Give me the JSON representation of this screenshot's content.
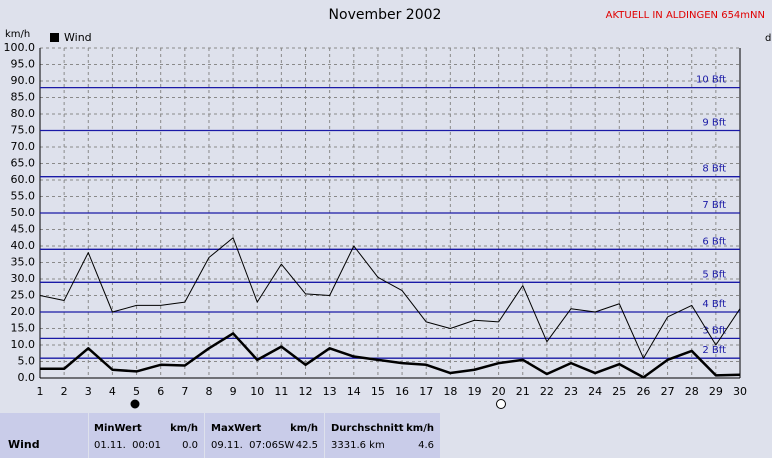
{
  "chart_data": {
    "type": "line",
    "title": "November 2002",
    "subtitle": "AKTUELL IN ALDINGEN 654mNN",
    "y_label": "km/h",
    "y2_label": "d",
    "x": [
      1,
      2,
      3,
      4,
      5,
      6,
      7,
      8,
      9,
      10,
      11,
      12,
      13,
      14,
      15,
      16,
      17,
      18,
      19,
      20,
      21,
      22,
      23,
      24,
      25,
      26,
      27,
      28,
      29,
      30
    ],
    "xlim": [
      1,
      30
    ],
    "xticks": [
      1,
      2,
      3,
      4,
      5,
      6,
      7,
      8,
      9,
      10,
      11,
      12,
      13,
      14,
      15,
      16,
      17,
      18,
      19,
      20,
      21,
      22,
      23,
      24,
      25,
      26,
      27,
      28,
      29,
      30
    ],
    "ylim": [
      0,
      100
    ],
    "yticks": [
      {
        "value": 0,
        "label": "0.0"
      },
      {
        "value": 5,
        "label": "5.0"
      },
      {
        "value": 10,
        "label": "10.0"
      },
      {
        "value": 15,
        "label": "15.0"
      },
      {
        "value": 20,
        "label": "20.0"
      },
      {
        "value": 25,
        "label": "25.0"
      },
      {
        "value": 30,
        "label": "30.0"
      },
      {
        "value": 35,
        "label": "35.0"
      },
      {
        "value": 40,
        "label": "40.0"
      },
      {
        "value": 45,
        "label": "45.0"
      },
      {
        "value": 50,
        "label": "50.0"
      },
      {
        "value": 55,
        "label": "55.0"
      },
      {
        "value": 60,
        "label": "60.0"
      },
      {
        "value": 65,
        "label": "65.0"
      },
      {
        "value": 70,
        "label": "70.0"
      },
      {
        "value": 75,
        "label": "75.0"
      },
      {
        "value": 80,
        "label": "80.0"
      },
      {
        "value": 85,
        "label": "85.0"
      },
      {
        "value": 90,
        "label": "90.0"
      },
      {
        "value": 95,
        "label": "95.0"
      },
      {
        "value": 100,
        "label": "100.0"
      }
    ],
    "grid": true,
    "reference_color": "#1a1aa6",
    "reference_lines": [
      {
        "value": 6,
        "label": "2 Bft"
      },
      {
        "value": 12,
        "label": "3 Bft"
      },
      {
        "value": 20,
        "label": "4 Bft"
      },
      {
        "value": 29,
        "label": "5 Bft"
      },
      {
        "value": 39,
        "label": "6 Bft"
      },
      {
        "value": 50,
        "label": "7 Bft"
      },
      {
        "value": 61,
        "label": "8 Bft"
      },
      {
        "value": 75,
        "label": "9 Bft"
      },
      {
        "value": 88,
        "label": "10 Bft"
      }
    ],
    "series": [
      {
        "color": "#000000",
        "width": 1,
        "values": [
          25,
          23.5,
          38,
          20,
          22,
          22,
          23,
          36.5,
          42.5,
          23,
          34.5,
          25.5,
          25,
          40,
          30.5,
          26.5,
          17,
          15,
          17.5,
          17,
          28,
          11,
          21,
          20,
          22.5,
          6,
          18.5,
          22,
          10,
          21
        ]
      },
      {
        "name": "Wind",
        "color": "#000000",
        "width": 2.5,
        "values": [
          2.8,
          2.8,
          9,
          2.5,
          2,
          4,
          3.8,
          9,
          13.5,
          5.5,
          9.5,
          4,
          9,
          6.5,
          5.5,
          4.5,
          4,
          1.5,
          2.5,
          4.5,
          5.5,
          1.2,
          4.5,
          1.5,
          4.2,
          0.2,
          5.5,
          8.2,
          0.8,
          1
        ]
      }
    ]
  },
  "stats": {
    "row_label": "Wind",
    "columns": [
      {
        "header": "MinWert",
        "unit": "km/h",
        "time": "01.11.  00:01",
        "value": "0.0"
      },
      {
        "header": "MaxWert",
        "unit": "km/h",
        "time": "09.11.  07:06SW",
        "value": "42.5"
      },
      {
        "header": "Durchschnitt",
        "unit": "km/h",
        "time": "3331.6 km",
        "value": "4.6"
      }
    ]
  }
}
